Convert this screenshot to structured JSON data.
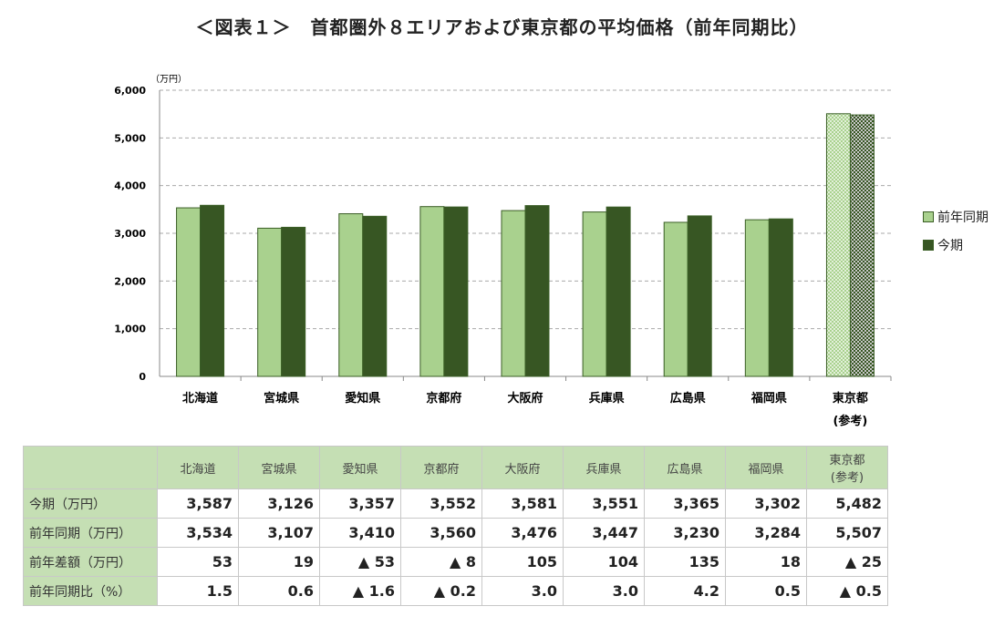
{
  "title": "＜図表１＞　首都圏外８エリアおよび東京都の平均価格（前年同期比）",
  "chart_data": {
    "type": "bar",
    "yunit": "（万円）",
    "ylim": [
      0,
      6000
    ],
    "yticks": [
      "0",
      "1,000",
      "2,000",
      "3,000",
      "4,000",
      "5,000",
      "6,000"
    ],
    "grid": true,
    "legend_position": "right",
    "categories": [
      "北海道",
      "宮城県",
      "愛知県",
      "京都府",
      "大阪府",
      "兵庫県",
      "広島県",
      "福岡県",
      "東京都"
    ],
    "category_sub": [
      "",
      "",
      "",
      "",
      "",
      "",
      "",
      "",
      "(参考)"
    ],
    "series": [
      {
        "name": "前年同期",
        "color": "#a9d18e",
        "values": [
          3534,
          3107,
          3410,
          3560,
          3476,
          3447,
          3230,
          3284,
          5507
        ]
      },
      {
        "name": "今期",
        "color": "#375623",
        "values": [
          3587,
          3126,
          3357,
          3552,
          3581,
          3551,
          3365,
          3302,
          5482
        ]
      }
    ],
    "note_pattern": "東京都 bars are checkered (reference)"
  },
  "table": {
    "headers": [
      "北海道",
      "宮城県",
      "愛知県",
      "京都府",
      "大阪府",
      "兵庫県",
      "広島県",
      "福岡県",
      "東京都",
      "(参考)"
    ],
    "rows": [
      {
        "label": "今期（万円）",
        "values": [
          "3,587",
          "3,126",
          "3,357",
          "3,552",
          "3,581",
          "3,551",
          "3,365",
          "3,302",
          "5,482"
        ]
      },
      {
        "label": "前年同期（万円）",
        "values": [
          "3,534",
          "3,107",
          "3,410",
          "3,560",
          "3,476",
          "3,447",
          "3,230",
          "3,284",
          "5,507"
        ]
      },
      {
        "label": "前年差額（万円）",
        "values": [
          "53",
          "19",
          "▲ 53",
          "▲ 8",
          "105",
          "104",
          "135",
          "18",
          "▲ 25"
        ]
      },
      {
        "label": "前年同期比（%）",
        "values": [
          "1.5",
          "0.6",
          "▲ 1.6",
          "▲ 0.2",
          "3.0",
          "3.0",
          "4.2",
          "0.5",
          "▲ 0.5"
        ]
      }
    ]
  }
}
